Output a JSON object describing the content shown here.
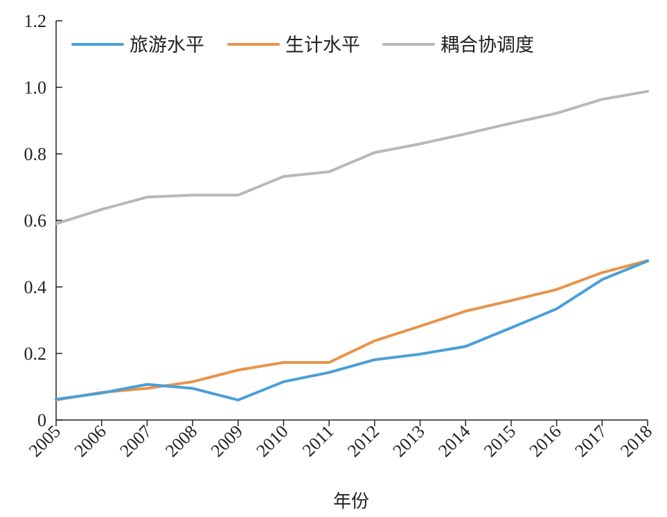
{
  "chart_data": {
    "type": "line",
    "title": "",
    "xlabel": "年份",
    "ylabel": "",
    "categories": [
      "2005",
      "2006",
      "2007",
      "2008",
      "2009",
      "2010",
      "2011",
      "2012",
      "2013",
      "2014",
      "2015",
      "2016",
      "2017",
      "2018"
    ],
    "ylim": [
      0,
      1.2
    ],
    "y_ticks": [
      0,
      0.2,
      0.4,
      0.6,
      0.8,
      1.0,
      1.2
    ],
    "y_tick_labels": [
      "0",
      "0.2",
      "0.4",
      "0.6",
      "0.8",
      "1.0",
      "1.2"
    ],
    "grid": false,
    "legend_position": "top",
    "series": [
      {
        "name": "旅游水平",
        "color": "#4a9fd8",
        "values": [
          0.062,
          0.081,
          0.107,
          0.095,
          0.06,
          0.115,
          0.143,
          0.181,
          0.198,
          0.221,
          0.277,
          0.334,
          0.422,
          0.478
        ]
      },
      {
        "name": "生计水平",
        "color": "#e8944a",
        "values": [
          0.06,
          0.083,
          0.095,
          0.115,
          0.15,
          0.173,
          0.173,
          0.238,
          0.282,
          0.327,
          0.359,
          0.392,
          0.443,
          0.479
        ]
      },
      {
        "name": "耦合协调度",
        "color": "#b7b7bc",
        "values": [
          0.59,
          0.633,
          0.67,
          0.676,
          0.676,
          0.732,
          0.746,
          0.804,
          0.83,
          0.86,
          0.892,
          0.922,
          0.964,
          0.988
        ]
      }
    ]
  }
}
